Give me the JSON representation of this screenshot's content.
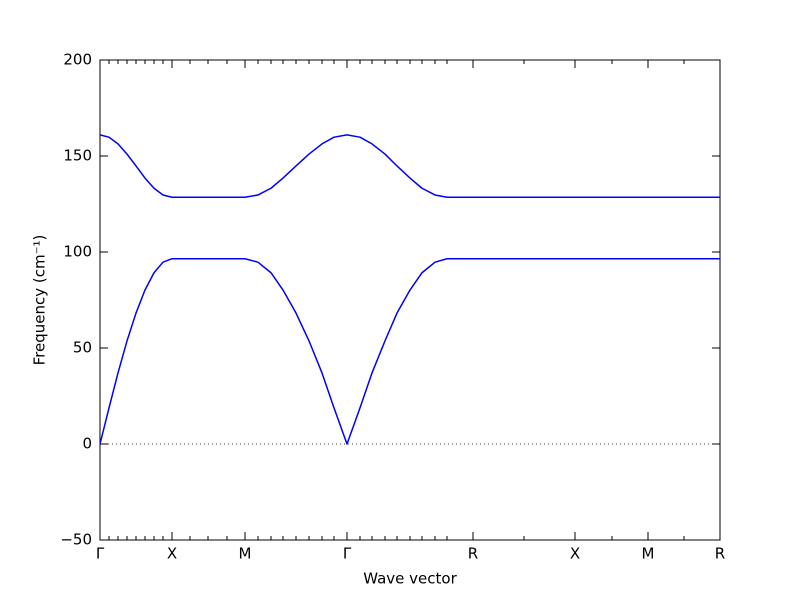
{
  "chart_data": {
    "type": "line",
    "xlabel": "Wave vector",
    "ylabel": "Frequency (cm⁻¹)",
    "x": [
      0,
      0.09,
      0.18,
      0.27,
      0.36,
      0.45,
      0.54,
      0.63,
      0.72,
      0.9,
      1.08,
      1.27,
      1.45,
      1.58,
      1.71,
      1.83,
      1.96,
      2.09,
      2.22,
      2.34,
      2.47,
      2.6,
      2.72,
      2.85,
      2.97,
      3.1,
      3.22,
      3.35,
      3.47,
      3.73,
      4.24,
      4.75,
      5.12,
      5.48,
      5.84,
      6.2
    ],
    "series": [
      {
        "color": "#0000ff",
        "values": [
          0,
          18.8,
          37.0,
          53.7,
          68.2,
          80.2,
          89.2,
          94.7,
          96.5,
          96.5,
          96.5,
          96.5,
          96.5,
          94.7,
          89.2,
          80.2,
          68.2,
          53.7,
          37.0,
          18.8,
          0,
          18.8,
          37.0,
          53.7,
          68.2,
          80.2,
          89.2,
          94.7,
          96.5,
          96.5,
          96.5,
          96.5,
          96.5,
          96.5,
          96.5,
          96.5
        ]
      },
      {
        "color": "#0000ff",
        "values": [
          161,
          159.8,
          156.3,
          151.0,
          144.8,
          138.5,
          133.2,
          129.7,
          128.5,
          128.5,
          128.5,
          128.5,
          128.5,
          129.7,
          133.2,
          138.5,
          144.8,
          151.0,
          156.3,
          159.8,
          161,
          159.8,
          156.3,
          151.0,
          144.8,
          138.5,
          133.2,
          129.7,
          128.5,
          128.5,
          128.5,
          128.5,
          128.5,
          128.5,
          128.5,
          128.5
        ]
      }
    ],
    "xlim": [
      0,
      6.2
    ],
    "xticks": [
      {
        "value": 0,
        "label": "Γ"
      },
      {
        "value": 0.72,
        "label": "X"
      },
      {
        "value": 1.45,
        "label": "M"
      },
      {
        "value": 2.47,
        "label": "Γ"
      },
      {
        "value": 3.73,
        "label": "R"
      },
      {
        "value": 4.75,
        "label": "X"
      },
      {
        "value": 5.48,
        "label": "M"
      },
      {
        "value": 6.2,
        "label": "R"
      }
    ],
    "ylim": [
      -50,
      200
    ],
    "yticks": [
      {
        "value": -50,
        "label": "−50"
      },
      0,
      50,
      100,
      150,
      200
    ],
    "reference_line": {
      "value": 0,
      "style": "dotted"
    }
  }
}
